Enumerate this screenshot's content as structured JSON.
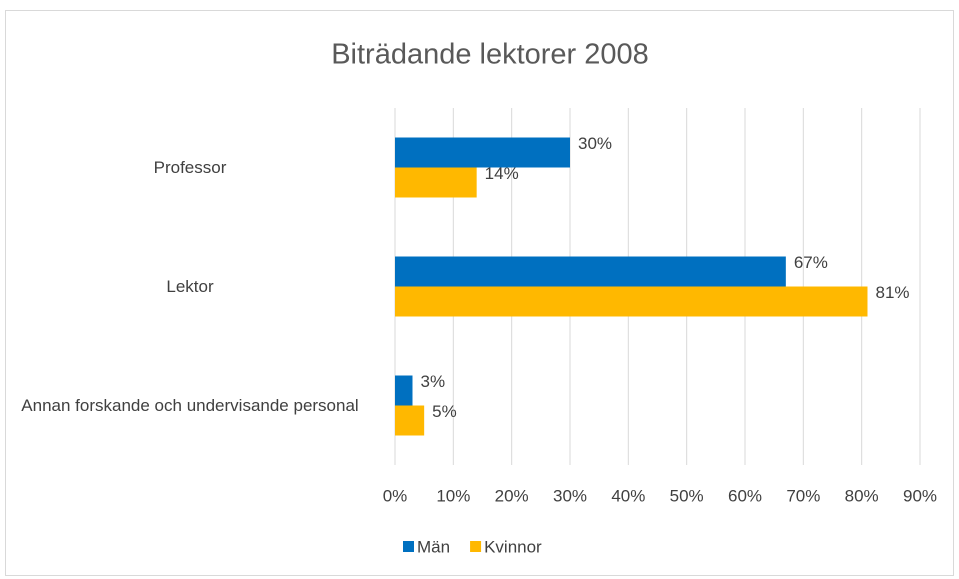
{
  "chart_data": {
    "type": "barh",
    "title": "Biträdande lektorer 2008",
    "categories": [
      "Professor",
      "Lektor",
      "Annan forskande och undervisande personal"
    ],
    "series": [
      {
        "name": "Män",
        "color": "#0070c0",
        "values": [
          30,
          67,
          3
        ],
        "value_labels": [
          "30%",
          "67%",
          "3%"
        ]
      },
      {
        "name": "Kvinnor",
        "color": "#ffb800",
        "values": [
          14,
          81,
          5
        ],
        "value_labels": [
          "14%",
          "81%",
          "5%"
        ]
      }
    ],
    "xlim": [
      0,
      90
    ],
    "xticks": [
      {
        "value": 0,
        "label": "0%"
      },
      {
        "value": 10,
        "label": "10%"
      },
      {
        "value": 20,
        "label": "20%"
      },
      {
        "value": 30,
        "label": "30%"
      },
      {
        "value": 40,
        "label": "40%"
      },
      {
        "value": 50,
        "label": "50%"
      },
      {
        "value": 60,
        "label": "60%"
      },
      {
        "value": 70,
        "label": "70%"
      },
      {
        "value": 80,
        "label": "80%"
      },
      {
        "value": 90,
        "label": "90%"
      }
    ],
    "grid": true,
    "legend": "bottom"
  }
}
